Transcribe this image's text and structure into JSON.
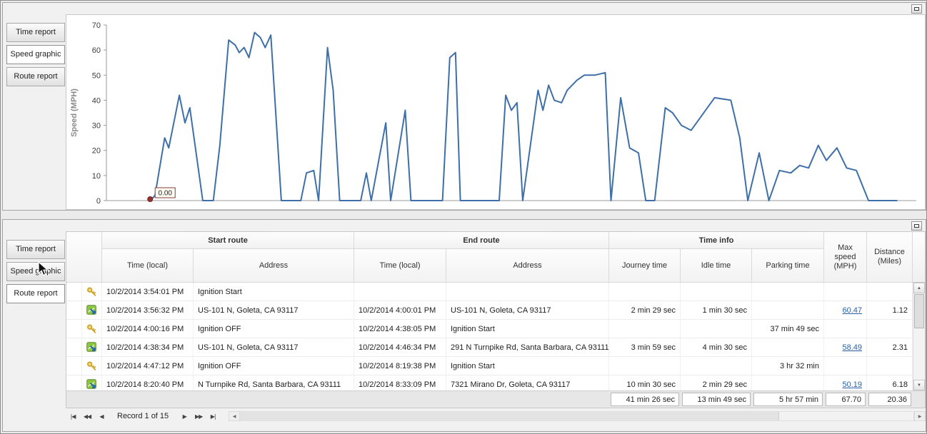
{
  "panels": {
    "top": {
      "tabs": [
        {
          "label": "Time report",
          "selected": false
        },
        {
          "label": "Speed graphic",
          "selected": true
        },
        {
          "label": "Route report",
          "selected": false
        }
      ]
    },
    "bottom": {
      "tabs": [
        {
          "label": "Time report",
          "selected": false
        },
        {
          "label": "Speed graphic",
          "selected": false
        },
        {
          "label": "Route report",
          "selected": true
        }
      ]
    }
  },
  "chart_data": {
    "type": "line",
    "title": "",
    "xlabel": "",
    "ylabel": "Speed (MPH)",
    "ylim": [
      0,
      70
    ],
    "yticks": [
      0,
      10,
      20,
      30,
      40,
      50,
      60,
      70
    ],
    "grid": false,
    "legend": false,
    "line_color": "#3e6fa8",
    "x_encoding": "fraction_of_plot_width",
    "annotation": {
      "label": "0.00",
      "x": 0.054,
      "value": 0
    },
    "points": [
      [
        0.054,
        0
      ],
      [
        0.06,
        2
      ],
      [
        0.072,
        25
      ],
      [
        0.077,
        21
      ],
      [
        0.09,
        42
      ],
      [
        0.097,
        31
      ],
      [
        0.103,
        37
      ],
      [
        0.119,
        0
      ],
      [
        0.132,
        0
      ],
      [
        0.14,
        22
      ],
      [
        0.151,
        64
      ],
      [
        0.159,
        62
      ],
      [
        0.164,
        59
      ],
      [
        0.17,
        61
      ],
      [
        0.176,
        57
      ],
      [
        0.183,
        67
      ],
      [
        0.19,
        65
      ],
      [
        0.196,
        61
      ],
      [
        0.203,
        66
      ],
      [
        0.216,
        0
      ],
      [
        0.24,
        0
      ],
      [
        0.247,
        11
      ],
      [
        0.256,
        12
      ],
      [
        0.262,
        0
      ],
      [
        0.273,
        61
      ],
      [
        0.28,
        44
      ],
      [
        0.288,
        0
      ],
      [
        0.314,
        0
      ],
      [
        0.321,
        11
      ],
      [
        0.327,
        0
      ],
      [
        0.345,
        31
      ],
      [
        0.351,
        0
      ],
      [
        0.369,
        36
      ],
      [
        0.376,
        0
      ],
      [
        0.415,
        0
      ],
      [
        0.424,
        57
      ],
      [
        0.431,
        59
      ],
      [
        0.437,
        0
      ],
      [
        0.485,
        0
      ],
      [
        0.493,
        42
      ],
      [
        0.5,
        36
      ],
      [
        0.507,
        39
      ],
      [
        0.514,
        0
      ],
      [
        0.533,
        44
      ],
      [
        0.539,
        36
      ],
      [
        0.546,
        46
      ],
      [
        0.553,
        40
      ],
      [
        0.562,
        39
      ],
      [
        0.569,
        44
      ],
      [
        0.581,
        48
      ],
      [
        0.59,
        50
      ],
      [
        0.603,
        50
      ],
      [
        0.616,
        51
      ],
      [
        0.623,
        0
      ],
      [
        0.635,
        41
      ],
      [
        0.646,
        21
      ],
      [
        0.657,
        19
      ],
      [
        0.666,
        0
      ],
      [
        0.677,
        0
      ],
      [
        0.69,
        37
      ],
      [
        0.699,
        35
      ],
      [
        0.71,
        30
      ],
      [
        0.722,
        28
      ],
      [
        0.751,
        41
      ],
      [
        0.771,
        40
      ],
      [
        0.782,
        25
      ],
      [
        0.792,
        0
      ],
      [
        0.806,
        19
      ],
      [
        0.818,
        0
      ],
      [
        0.831,
        12
      ],
      [
        0.845,
        11
      ],
      [
        0.856,
        14
      ],
      [
        0.867,
        13
      ],
      [
        0.879,
        22
      ],
      [
        0.889,
        16
      ],
      [
        0.902,
        21
      ],
      [
        0.914,
        13
      ],
      [
        0.926,
        12
      ],
      [
        0.941,
        0
      ],
      [
        0.976,
        0
      ]
    ]
  },
  "table": {
    "groups": [
      "Start route",
      "End route",
      "Time info"
    ],
    "columns": [
      "Time (local)",
      "Address",
      "Time (local)",
      "Address",
      "Journey time",
      "Idle time",
      "Parking time",
      "Max speed (MPH)",
      "Distance (Miles)"
    ],
    "rows": [
      {
        "icon": "key",
        "cells": [
          "10/2/2014 3:54:01 PM",
          "Ignition Start",
          "",
          "",
          "",
          "",
          "",
          "",
          ""
        ]
      },
      {
        "icon": "route",
        "cells": [
          "10/2/2014 3:56:32 PM",
          "US-101 N, Goleta, CA 93117",
          "10/2/2014 4:00:01 PM",
          "US-101 N, Goleta, CA 93117",
          "2 min 29 sec",
          "1 min 30 sec",
          "",
          "60.47",
          "1.12"
        ]
      },
      {
        "icon": "key",
        "cells": [
          "10/2/2014 4:00:16 PM",
          "Ignition OFF",
          "10/2/2014 4:38:05 PM",
          "Ignition Start",
          "",
          "",
          "37 min 49 sec",
          "",
          ""
        ]
      },
      {
        "icon": "route",
        "cells": [
          "10/2/2014 4:38:34 PM",
          "US-101 N, Goleta, CA 93117",
          "10/2/2014 4:46:34 PM",
          "291 N Turnpike Rd, Santa Barbara, CA 93111",
          "3 min 59 sec",
          "4 min 30 sec",
          "",
          "58.49",
          "2.31"
        ]
      },
      {
        "icon": "key",
        "cells": [
          "10/2/2014 4:47:12 PM",
          "Ignition OFF",
          "10/2/2014 8:19:38 PM",
          "Ignition Start",
          "",
          "",
          "3 hr 32 min",
          "",
          ""
        ]
      },
      {
        "icon": "route",
        "cells": [
          "10/2/2014 8:20:40 PM",
          "N Turnpike Rd, Santa Barbara, CA 93111",
          "10/2/2014 8:33:09 PM",
          "7321 Mirano Dr, Goleta, CA 93117",
          "10 min 30 sec",
          "2 min 29 sec",
          "",
          "50.19",
          "6.18"
        ]
      }
    ],
    "summary": {
      "journey": "41 min 26 sec",
      "idle": "13 min 49 sec",
      "parking": "5 hr 57 min",
      "max_speed": "67.70",
      "distance": "20.36"
    },
    "navigator": {
      "record_text": "Record 1 of 15"
    }
  },
  "icons": {
    "nav_first": "|◀",
    "nav_prev_page": "◀◀",
    "nav_prev": "◀",
    "nav_next": "▶",
    "nav_next_page": "▶▶",
    "nav_last": "▶|",
    "scroll_up": "▲",
    "scroll_down": "▼",
    "hscroll_left": "◀",
    "hscroll_right": "▶"
  },
  "colors": {
    "chart_line": "#3e6fa8",
    "max_speed_link": "#2b5fa3",
    "annotation_marker": "#9e2f2f"
  }
}
